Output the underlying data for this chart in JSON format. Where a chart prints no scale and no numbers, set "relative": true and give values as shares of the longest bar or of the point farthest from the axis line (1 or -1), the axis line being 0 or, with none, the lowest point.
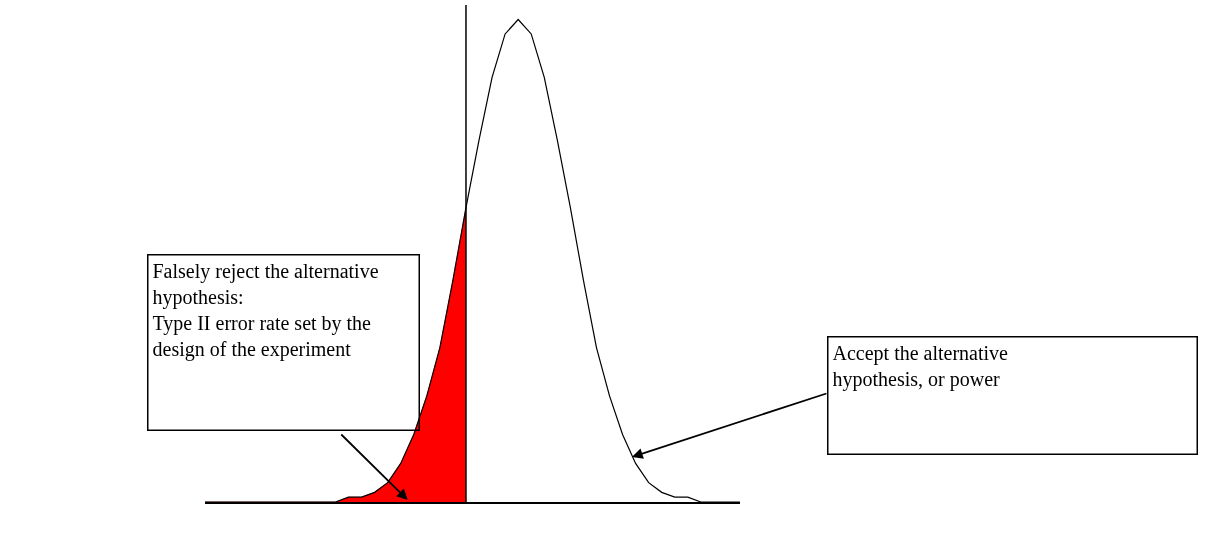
{
  "chart_data": {
    "type": "line",
    "relative": true,
    "categories": [
      null,
      null,
      null,
      null,
      null,
      null,
      null,
      null,
      null,
      null,
      null,
      null,
      null,
      null,
      null,
      null,
      null,
      null,
      null,
      null,
      null,
      null,
      null,
      null,
      null,
      null,
      null,
      null,
      null,
      null,
      null,
      null,
      null,
      null,
      null,
      null,
      null,
      null,
      null,
      null,
      null,
      null
    ],
    "series": [
      {
        "type": "area",
        "color": "#ff0000",
        "values": [
          0,
          0,
          0,
          0,
          0,
          0,
          0,
          0,
          0,
          0,
          0,
          0.01,
          0.01,
          0.02,
          0.04,
          0.08,
          0.14,
          0.22,
          0.32,
          0.46,
          0.61,
          null,
          null,
          null,
          null,
          null,
          null,
          null,
          null,
          null,
          null,
          null,
          null,
          null,
          null,
          null,
          null,
          null,
          null,
          null,
          null,
          null
        ]
      },
      {
        "type": "line",
        "color": "#000000",
        "values": [
          0,
          0,
          0,
          0,
          0,
          0,
          0,
          0,
          0,
          0,
          0,
          0.01,
          0.01,
          0.02,
          0.04,
          0.08,
          0.14,
          0.22,
          0.32,
          0.46,
          0.61,
          0.75,
          0.88,
          0.97,
          1,
          0.97,
          0.88,
          0.75,
          0.61,
          0.46,
          0.32,
          0.22,
          0.14,
          0.08,
          0.04,
          0.02,
          0.01,
          0.01,
          0,
          0,
          0,
          0
        ]
      }
    ],
    "annotations": [
      "Falsely reject the alternative hypothesis:\nType II error rate set by the design of the experiment",
      "Accept the alternative hypothesis, or power"
    ]
  }
}
